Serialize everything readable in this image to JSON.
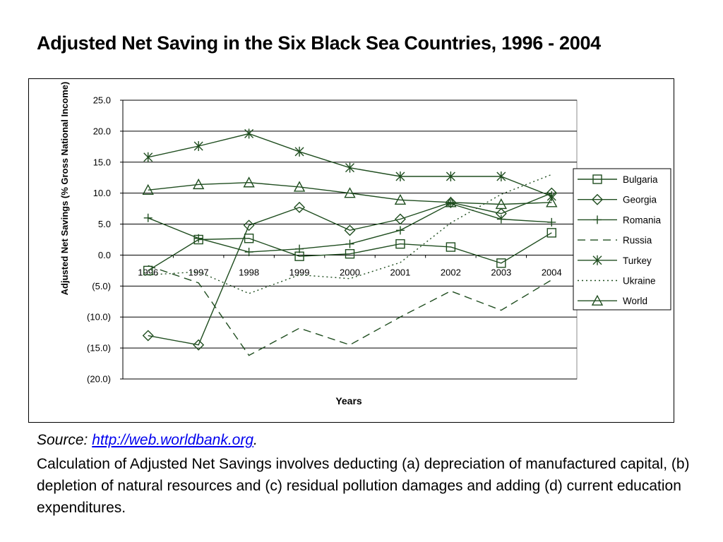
{
  "slide": {
    "title": "Adjusted Net Saving in the Six Black Sea Countries, 1996 - 2004",
    "source_label": "Source: ",
    "source_link": "http://web.worldbank.org",
    "source_suffix": ".",
    "note": "Calculation of Adjusted Net Savings involves deducting (a) depreciation of manufactured capital, (b) depletion of natural resources and (c) residual pollution damages and adding (d) current education expenditures."
  },
  "chart_data": {
    "type": "line",
    "title": "",
    "xlabel": "Years",
    "ylabel": "Adjusted Net Savings (% Gross National Income)",
    "categories": [
      "1996",
      "1997",
      "1998",
      "1999",
      "2000",
      "2001",
      "2002",
      "2003",
      "2004"
    ],
    "ylim": [
      -20,
      25
    ],
    "yticks": [
      25,
      20,
      15,
      10,
      5,
      0,
      -5,
      -10,
      -15,
      -20
    ],
    "ytick_labels": [
      "25.0",
      "20.0",
      "15.0",
      "10.0",
      "5.0",
      "0.0",
      "(5.0)",
      "(10.0)",
      "(15.0)",
      "(20.0)"
    ],
    "grid": true,
    "legend_position": "right",
    "line_color": "#1f4d1f",
    "series": [
      {
        "name": "Bulgaria",
        "marker": "square",
        "dash": "solid",
        "values": [
          -2.5,
          2.5,
          2.7,
          -0.2,
          0.2,
          1.8,
          1.3,
          -1.3,
          3.6
        ]
      },
      {
        "name": "Georgia",
        "marker": "diamond",
        "dash": "solid",
        "values": [
          -13.0,
          -14.5,
          4.8,
          7.7,
          4.0,
          5.8,
          8.5,
          6.7,
          10.0
        ]
      },
      {
        "name": "Romania",
        "marker": "plus",
        "dash": "solid",
        "values": [
          6.0,
          2.7,
          0.5,
          1.0,
          1.8,
          4.0,
          8.3,
          5.8,
          5.3
        ]
      },
      {
        "name": "Russia",
        "marker": "none",
        "dash": "long",
        "values": [
          -1.7,
          -4.5,
          -16.2,
          -11.8,
          -14.5,
          -10.0,
          -5.8,
          -8.9,
          -4.0
        ]
      },
      {
        "name": "Turkey",
        "marker": "star",
        "dash": "solid",
        "values": [
          15.8,
          17.6,
          19.6,
          16.7,
          14.1,
          12.7,
          12.7,
          12.7,
          9.5
        ]
      },
      {
        "name": "Ukraine",
        "marker": "none",
        "dash": "dot",
        "values": [
          -3.2,
          -2.7,
          -6.2,
          -3.2,
          -3.8,
          -1.2,
          5.2,
          9.8,
          13.0
        ]
      },
      {
        "name": "World",
        "marker": "triangle",
        "dash": "solid",
        "values": [
          10.5,
          11.4,
          11.7,
          11.0,
          10.0,
          8.9,
          8.5,
          8.2,
          8.5
        ]
      }
    ]
  }
}
